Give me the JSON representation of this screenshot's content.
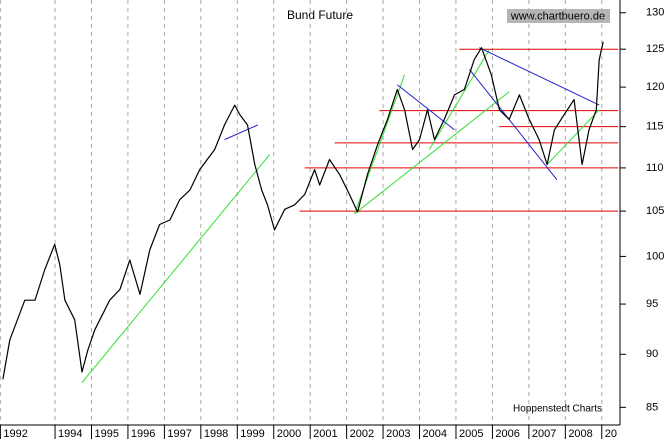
{
  "chart_data": {
    "type": "line",
    "title": "Bund Future",
    "watermark": "www.chartbuero.de",
    "source": "Hoppenstedt Charts",
    "log_scale": true,
    "grid": true,
    "x": [
      1992.57,
      1992.76,
      1993.17,
      1993.45,
      1993.72,
      1993.99,
      1994.13,
      1994.27,
      1994.54,
      1994.74,
      1994.9,
      1995.09,
      1995.5,
      1995.78,
      1996.05,
      1996.33,
      1996.6,
      1996.87,
      1997.15,
      1997.42,
      1997.7,
      1997.97,
      1998.38,
      1998.65,
      1998.93,
      1999.07,
      1999.28,
      1999.48,
      1999.67,
      1999.83,
      2000.02,
      2000.3,
      2000.57,
      2000.85,
      2001.12,
      2001.26,
      2001.53,
      2001.81,
      2002.08,
      2002.3,
      2002.57,
      2002.85,
      2003.12,
      2003.39,
      2003.59,
      2003.81,
      2004.0,
      2004.22,
      2004.41,
      2004.68,
      2004.96,
      2005.23,
      2005.5,
      2005.7,
      2005.97,
      2006.19,
      2006.46,
      2006.74,
      2007.01,
      2007.28,
      2007.5,
      2007.7,
      2007.97,
      2008.24,
      2008.46,
      2008.65,
      2008.85,
      2008.93,
      2009.04
    ],
    "series": [
      {
        "name": "Bund Future",
        "color": "#000000",
        "values": [
          87.6,
          91.4,
          95.4,
          95.4,
          98.6,
          101.3,
          99.1,
          95.4,
          93.4,
          88.3,
          90.4,
          92.4,
          95.4,
          96.5,
          99.6,
          96.0,
          100.7,
          103.5,
          104.0,
          106.3,
          107.4,
          109.8,
          112.2,
          115.2,
          117.7,
          116.5,
          115.2,
          110.4,
          107.4,
          105.7,
          102.9,
          105.2,
          105.7,
          106.9,
          109.8,
          108.0,
          111.0,
          109.2,
          106.9,
          104.9,
          109.2,
          112.8,
          115.9,
          119.7,
          117.1,
          112.2,
          113.4,
          117.1,
          113.4,
          115.9,
          119.0,
          119.7,
          123.6,
          125.2,
          121.6,
          117.1,
          115.9,
          119.0,
          115.9,
          113.4,
          110.4,
          114.6,
          116.5,
          118.4,
          110.4,
          114.6,
          117.1,
          123.6,
          126.0
        ]
      }
    ],
    "horizontal_lines": [
      {
        "color": "#e00000",
        "value": 105,
        "x": [
          2000.71,
          2009.45
        ]
      },
      {
        "color": "#e00000",
        "value": 110,
        "x": [
          2000.85,
          2009.45
        ]
      },
      {
        "color": "#e00000",
        "value": 113,
        "x": [
          2001.67,
          2009.45
        ]
      },
      {
        "color": "#e00000",
        "value": 115,
        "x": [
          2006.19,
          2009.45
        ]
      },
      {
        "color": "#e00000",
        "value": 117,
        "x": [
          2002.9,
          2009.45
        ]
      },
      {
        "color": "#e00000",
        "value": 125,
        "x": [
          2005.09,
          2009.45
        ]
      }
    ],
    "trend_lines": [
      {
        "color": "#33dd33",
        "x": [
          1994.74,
          1999.89
        ],
        "values": [
          87.3,
          111.6
        ]
      },
      {
        "color": "#33dd33",
        "x": [
          2002.22,
          2003.59
        ],
        "values": [
          104.7,
          121.6
        ]
      },
      {
        "color": "#33dd33",
        "x": [
          2002.22,
          2006.46
        ],
        "values": [
          104.7,
          119.4
        ]
      },
      {
        "color": "#33dd33",
        "x": [
          2004.27,
          2005.91
        ],
        "values": [
          112.2,
          124.9
        ]
      },
      {
        "color": "#33dd33",
        "x": [
          2007.5,
          2008.93
        ],
        "values": [
          110.4,
          117.1
        ]
      },
      {
        "color": "#2222cc",
        "x": [
          1998.65,
          1999.56
        ],
        "values": [
          113.4,
          115.2
        ]
      },
      {
        "color": "#2222cc",
        "x": [
          2003.39,
          2004.96
        ],
        "values": [
          120.3,
          114.6
        ]
      },
      {
        "color": "#2222cc",
        "x": [
          2005.64,
          2008.93
        ],
        "values": [
          125.2,
          117.7
        ]
      },
      {
        "color": "#2222cc",
        "x": [
          2005.37,
          2007.77
        ],
        "values": [
          122.3,
          108.6
        ]
      }
    ],
    "xlim": [
      1992.49,
      2009.5
    ],
    "xticks": [
      {
        "value": 1992.5,
        "label": "1992"
      },
      1994,
      1995,
      1996,
      1997,
      1998,
      1999,
      2000,
      2001,
      2002,
      2003,
      2004,
      2005,
      2006,
      2007,
      2008,
      {
        "value": 2009,
        "label": "20"
      }
    ],
    "ylim": [
      83.4,
      131.8
    ],
    "yticks": [
      85,
      90,
      95,
      100,
      105,
      110,
      115,
      120,
      125,
      130
    ]
  }
}
